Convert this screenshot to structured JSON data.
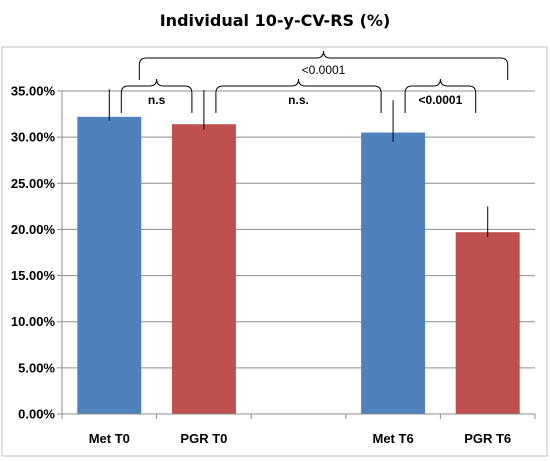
{
  "chart_data": {
    "type": "bar",
    "title": "Individual 10-y-CV-RS (%)",
    "categories": [
      "Met T0",
      "PGR T0",
      "",
      "Met T6",
      "PGR T6"
    ],
    "values": [
      32.2,
      31.4,
      null,
      30.5,
      19.7
    ],
    "error_upper": [
      35.2,
      35.1,
      null,
      34.0,
      22.5
    ],
    "error_lower": [
      31.8,
      30.8,
      null,
      29.5,
      19.2
    ],
    "bar_colors": [
      "#4f81bd",
      "#c0504d",
      null,
      "#4f81bd",
      "#c0504d"
    ],
    "ylim": [
      0,
      35
    ],
    "yticks": [
      0,
      5,
      10,
      15,
      20,
      25,
      30,
      35
    ],
    "ytick_labels": [
      "0.00%",
      "5.00%",
      "10.00%",
      "15.00%",
      "20.00%",
      "25.00%",
      "30.00%",
      "35.00%"
    ],
    "grid": true,
    "annotations": [
      {
        "from": 0,
        "to": 1,
        "label": "n.s",
        "bold": true
      },
      {
        "from": 1,
        "to": 3,
        "label": "n.s.",
        "bold": true
      },
      {
        "from": 3,
        "to": 4,
        "label": "<0.0001",
        "bold": true
      },
      {
        "from": 0,
        "to": 4,
        "label": "<0.0001",
        "bold": false
      }
    ]
  }
}
